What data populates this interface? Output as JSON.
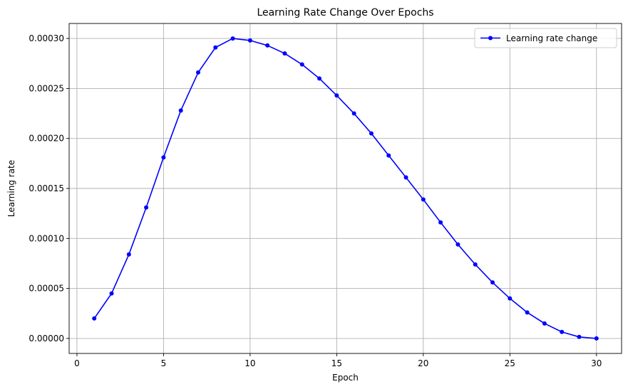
{
  "chart_data": {
    "type": "line",
    "title": "Learning Rate Change Over Epochs",
    "xlabel": "Epoch",
    "ylabel": "Learning rate",
    "xlim": [
      -0.45,
      31.45
    ],
    "ylim": [
      -1.5e-05,
      0.000315
    ],
    "xticks": [
      0,
      5,
      10,
      15,
      20,
      25,
      30
    ],
    "xtick_labels": [
      "0",
      "5",
      "10",
      "15",
      "20",
      "25",
      "30"
    ],
    "yticks": [
      0,
      5e-05,
      0.0001,
      0.00015,
      0.0002,
      0.00025,
      0.0003
    ],
    "ytick_labels": [
      "0.00000",
      "0.00005",
      "0.00010",
      "0.00015",
      "0.00020",
      "0.00025",
      "0.00030"
    ],
    "grid": true,
    "legend_position": "top-right",
    "series": [
      {
        "name": "Learning rate change",
        "color": "#0000ff",
        "marker": "circle",
        "x": [
          1,
          2,
          3,
          4,
          5,
          6,
          7,
          8,
          9,
          10,
          11,
          12,
          13,
          14,
          15,
          16,
          17,
          18,
          19,
          20,
          21,
          22,
          23,
          24,
          25,
          26,
          27,
          28,
          29,
          30
        ],
        "y": [
          2e-05,
          4.5e-05,
          8.4e-05,
          0.000131,
          0.000181,
          0.000228,
          0.000266,
          0.000291,
          0.0003,
          0.000298,
          0.000293,
          0.000285,
          0.000274,
          0.00026,
          0.000243,
          0.000225,
          0.000205,
          0.000183,
          0.000161,
          0.000139,
          0.000116,
          9.4e-05,
          7.4e-05,
          5.6e-05,
          4e-05,
          2.6e-05,
          1.5e-05,
          6.5e-06,
          1.5e-06,
          0.0
        ]
      }
    ]
  }
}
